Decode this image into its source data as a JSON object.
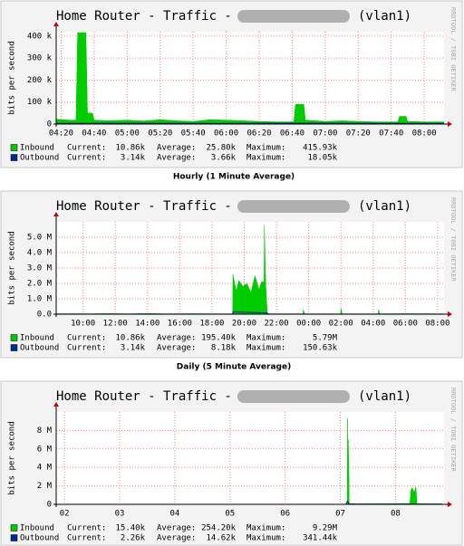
{
  "chart_data": [
    {
      "type": "area",
      "title": "Home Router - Traffic -",
      "title_suffix": "(vlan1)",
      "ylabel": "bits per second",
      "watermark": "RRDTOOL / TOBI OETIKER",
      "caption": "Hourly (1 Minute Average)",
      "xlim": [
        257,
        492
      ],
      "xticks": [
        {
          "value": 260,
          "label": "04:20"
        },
        {
          "value": 280,
          "label": "04:40"
        },
        {
          "value": 300,
          "label": "05:00"
        },
        {
          "value": 320,
          "label": "05:20"
        },
        {
          "value": 340,
          "label": "05:40"
        },
        {
          "value": 360,
          "label": "06:00"
        },
        {
          "value": 380,
          "label": "06:20"
        },
        {
          "value": 400,
          "label": "06:40"
        },
        {
          "value": 420,
          "label": "07:00"
        },
        {
          "value": 440,
          "label": "07:20"
        },
        {
          "value": 460,
          "label": "07:40"
        },
        {
          "value": 480,
          "label": "08:00"
        }
      ],
      "ylim": [
        0,
        420000
      ],
      "yticks": [
        0,
        {
          "value": 100000,
          "label": "100 k"
        },
        {
          "value": 200000,
          "label": "200 k"
        },
        {
          "value": 300000,
          "label": "300 k"
        },
        {
          "value": 400000,
          "label": "400 k"
        }
      ],
      "grid": true,
      "legend_labels": [
        "Current:",
        "Average:",
        "Maximum:"
      ],
      "series": [
        {
          "name": "Inbound",
          "color": "#00cc00",
          "style": "area",
          "stats": [
            "10.86k",
            "25.80k",
            "415.93k"
          ],
          "x": [
            257,
            265,
            269,
            270,
            275,
            276,
            279,
            280,
            290,
            300,
            310,
            320,
            330,
            340,
            350,
            360,
            370,
            380,
            390,
            401,
            402,
            407,
            408,
            420,
            430,
            440,
            450,
            464,
            465,
            469,
            470,
            480,
            492
          ],
          "values": [
            22000,
            18000,
            18000,
            415930,
            415930,
            50000,
            50000,
            18000,
            15000,
            18000,
            14000,
            20000,
            15000,
            12000,
            20000,
            18000,
            15000,
            12000,
            10000,
            10000,
            90000,
            90000,
            18000,
            12000,
            15000,
            12000,
            10000,
            10000,
            35000,
            35000,
            12000,
            10000,
            10000
          ]
        },
        {
          "name": "Outbound",
          "color": "#002a97",
          "style": "line",
          "stats": [
            "3.14k",
            "3.66k",
            "18.05k"
          ],
          "x": [
            257,
            300,
            350,
            400,
            450,
            492
          ],
          "values": [
            3000,
            3500,
            3000,
            4000,
            3000,
            3000
          ]
        }
      ]
    },
    {
      "type": "area",
      "title": "Home Router - Traffic -",
      "title_suffix": "(vlan1)",
      "ylabel": "bits per second",
      "watermark": "RRDTOOL / TOBI OETIKER",
      "caption": "Daily (5 Minute Average)",
      "xlim": [
        500,
        1944
      ],
      "xticks": [
        {
          "value": 600,
          "label": "10:00"
        },
        {
          "value": 720,
          "label": "12:00"
        },
        {
          "value": 840,
          "label": "14:00"
        },
        {
          "value": 960,
          "label": "16:00"
        },
        {
          "value": 1080,
          "label": "18:00"
        },
        {
          "value": 1200,
          "label": "20:00"
        },
        {
          "value": 1320,
          "label": "22:00"
        },
        {
          "value": 1440,
          "label": "00:00"
        },
        {
          "value": 1560,
          "label": "02:00"
        },
        {
          "value": 1680,
          "label": "04:00"
        },
        {
          "value": 1800,
          "label": "06:00"
        },
        {
          "value": 1920,
          "label": "08:00"
        }
      ],
      "ylim": [
        0,
        6000000
      ],
      "yticks": [
        {
          "value": 0,
          "label": "0.0"
        },
        {
          "value": 1000000,
          "label": "1.0 M"
        },
        {
          "value": 2000000,
          "label": "2.0 M"
        },
        {
          "value": 3000000,
          "label": "3.0 M"
        },
        {
          "value": 4000000,
          "label": "4.0 M"
        },
        {
          "value": 5000000,
          "label": "5.0 M"
        }
      ],
      "grid": true,
      "legend_labels": [
        "Current:",
        "Average:",
        "Maximum:"
      ],
      "series": [
        {
          "name": "Inbound",
          "color": "#00cc00",
          "style": "area",
          "stats": [
            "10.86k",
            "195.40k",
            "5.79M"
          ],
          "x": [
            500,
            560,
            620,
            700,
            760,
            850,
            900,
            1000,
            1100,
            1157,
            1158,
            1170,
            1180,
            1195,
            1210,
            1225,
            1240,
            1255,
            1265,
            1274,
            1275,
            1280,
            1286,
            1300,
            1380,
            1419,
            1420,
            1425,
            1559,
            1560,
            1565,
            1699,
            1700,
            1705,
            1800,
            1944
          ],
          "values": [
            20000,
            30000,
            20000,
            40000,
            20000,
            50000,
            20000,
            30000,
            20000,
            20000,
            2600000,
            1500000,
            2200000,
            1800000,
            2000000,
            1400000,
            2500000,
            1600000,
            2100000,
            2100000,
            5790000,
            2000000,
            50000,
            20000,
            20000,
            20000,
            300000,
            20000,
            20000,
            400000,
            20000,
            20000,
            300000,
            20000,
            30000,
            20000
          ]
        },
        {
          "name": "Outbound",
          "color": "#002a97",
          "style": "line",
          "stats": [
            "3.14k",
            "8.18k",
            "150.63k"
          ],
          "x": [
            500,
            1157,
            1158,
            1286,
            1287,
            1944
          ],
          "values": [
            5000,
            5000,
            150630,
            80000,
            5000,
            5000
          ]
        }
      ]
    },
    {
      "type": "area",
      "title": "Home Router - Traffic -",
      "title_suffix": "(vlan1)",
      "ylabel": "bits per second",
      "watermark": "RRDTOOL / TOBI OETIKER",
      "xlim": [
        1.85,
        8.88
      ],
      "xticks": [
        {
          "value": 2,
          "label": "02"
        },
        {
          "value": 3,
          "label": "03"
        },
        {
          "value": 4,
          "label": "04"
        },
        {
          "value": 5,
          "label": "05"
        },
        {
          "value": 6,
          "label": "06"
        },
        {
          "value": 7,
          "label": "07"
        },
        {
          "value": 8,
          "label": "08"
        }
      ],
      "ylim": [
        0,
        10000000
      ],
      "yticks": [
        0,
        {
          "value": 2000000,
          "label": "2 M"
        },
        {
          "value": 4000000,
          "label": "4 M"
        },
        {
          "value": 6000000,
          "label": "6 M"
        },
        {
          "value": 8000000,
          "label": "8 M"
        }
      ],
      "grid": true,
      "legend_labels": [
        "Current:",
        "Average:",
        "Maximum:"
      ],
      "series": [
        {
          "name": "Inbound",
          "color": "#00cc00",
          "style": "area",
          "stats": [
            "15.40k",
            "254.20k",
            "9.29M"
          ],
          "x": [
            7.1,
            7.125,
            7.13,
            7.14,
            7.15,
            7.16,
            7.3,
            7.6,
            8.0,
            8.26,
            8.28,
            8.3,
            8.34,
            8.37,
            8.39,
            8.6,
            8.85
          ],
          "values": [
            50000,
            50000,
            9290000,
            3000000,
            7000000,
            100000,
            50000,
            60000,
            80000,
            100000,
            1500000,
            1800000,
            1300000,
            1900000,
            80000,
            60000,
            50000
          ]
        },
        {
          "name": "Outbound",
          "color": "#002a97",
          "style": "line",
          "stats": [
            "2.26k",
            "14.62k",
            "341.44k"
          ],
          "x": [
            7.1,
            7.13,
            7.16,
            8.85
          ],
          "values": [
            20000,
            341440,
            20000,
            20000
          ]
        }
      ]
    }
  ]
}
